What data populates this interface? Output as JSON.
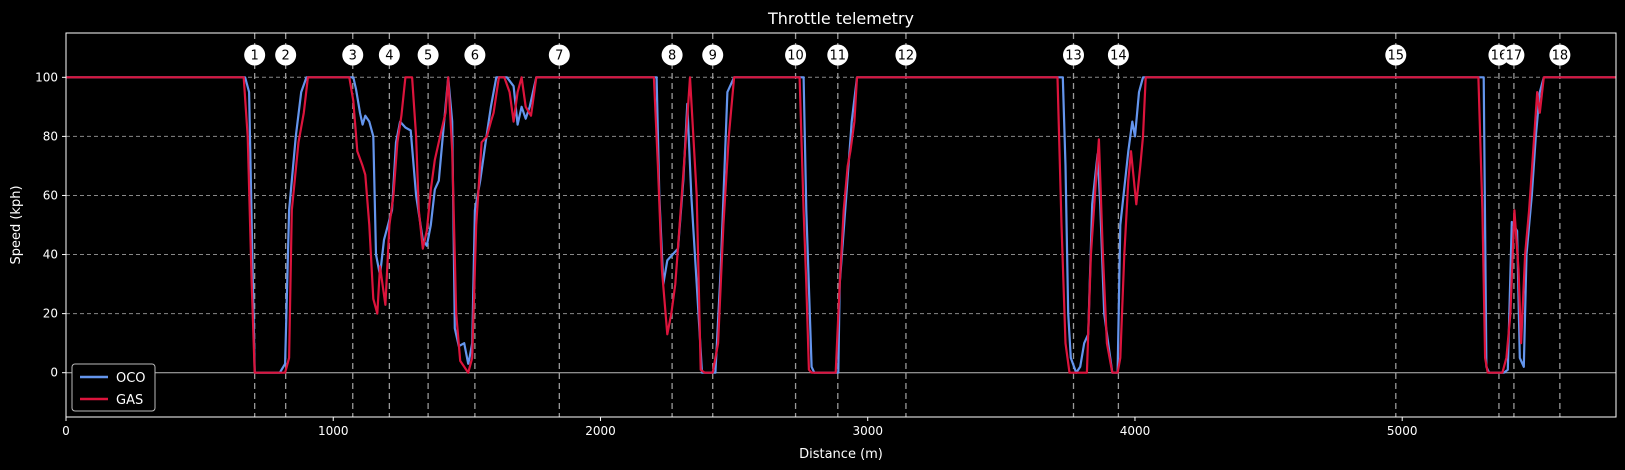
{
  "chart_data": {
    "type": "line",
    "title": "Throttle telemetry",
    "xlabel": "Distance (m)",
    "ylabel": "Speed (kph)",
    "xlim": [
      0,
      5800
    ],
    "ylim": [
      -15,
      115
    ],
    "x_ticks": [
      0,
      1000,
      2000,
      3000,
      4000,
      5000
    ],
    "y_ticks": [
      0,
      20,
      40,
      60,
      80,
      100
    ],
    "grid": true,
    "legend_position": "lower-left",
    "background": "#000000",
    "corners": [
      {
        "label": "1",
        "x": 706
      },
      {
        "label": "2",
        "x": 822
      },
      {
        "label": "3",
        "x": 1073
      },
      {
        "label": "4",
        "x": 1210
      },
      {
        "label": "5",
        "x": 1355
      },
      {
        "label": "6",
        "x": 1530
      },
      {
        "label": "7",
        "x": 1846
      },
      {
        "label": "8",
        "x": 2268
      },
      {
        "label": "9",
        "x": 2420
      },
      {
        "label": "10",
        "x": 2730
      },
      {
        "label": "11",
        "x": 2888
      },
      {
        "label": "12",
        "x": 3143
      },
      {
        "label": "13",
        "x": 3770
      },
      {
        "label": "14",
        "x": 3938
      },
      {
        "label": "15",
        "x": 4976
      },
      {
        "label": "16",
        "x": 5362
      },
      {
        "label": "17",
        "x": 5418
      },
      {
        "label": "18",
        "x": 5590
      }
    ],
    "series": [
      {
        "name": "OCO",
        "color": "#6495ed",
        "points": [
          [
            0,
            100
          ],
          [
            670,
            100
          ],
          [
            685,
            95
          ],
          [
            695,
            50
          ],
          [
            706,
            0
          ],
          [
            800,
            0
          ],
          [
            820,
            3
          ],
          [
            835,
            55
          ],
          [
            860,
            80
          ],
          [
            880,
            95
          ],
          [
            900,
            100
          ],
          [
            1075,
            100
          ],
          [
            1085,
            96
          ],
          [
            1100,
            88
          ],
          [
            1110,
            84
          ],
          [
            1120,
            87
          ],
          [
            1135,
            85
          ],
          [
            1150,
            80
          ],
          [
            1160,
            40
          ],
          [
            1175,
            33
          ],
          [
            1190,
            45
          ],
          [
            1205,
            50
          ],
          [
            1220,
            55
          ],
          [
            1235,
            78
          ],
          [
            1250,
            85
          ],
          [
            1270,
            83
          ],
          [
            1290,
            82
          ],
          [
            1310,
            60
          ],
          [
            1335,
            45
          ],
          [
            1350,
            43
          ],
          [
            1365,
            50
          ],
          [
            1380,
            62
          ],
          [
            1395,
            65
          ],
          [
            1410,
            80
          ],
          [
            1430,
            100
          ],
          [
            1445,
            85
          ],
          [
            1455,
            15
          ],
          [
            1470,
            9
          ],
          [
            1490,
            10
          ],
          [
            1505,
            3
          ],
          [
            1510,
            5
          ],
          [
            1520,
            10
          ],
          [
            1530,
            55
          ],
          [
            1550,
            65
          ],
          [
            1570,
            78
          ],
          [
            1590,
            90
          ],
          [
            1610,
            100
          ],
          [
            1650,
            100
          ],
          [
            1675,
            97
          ],
          [
            1690,
            84
          ],
          [
            1705,
            90
          ],
          [
            1720,
            86
          ],
          [
            1735,
            90
          ],
          [
            1760,
            100
          ],
          [
            2210,
            100
          ],
          [
            2220,
            60
          ],
          [
            2235,
            30
          ],
          [
            2250,
            38
          ],
          [
            2270,
            40
          ],
          [
            2290,
            42
          ],
          [
            2310,
            65
          ],
          [
            2325,
            91
          ],
          [
            2340,
            60
          ],
          [
            2360,
            30
          ],
          [
            2380,
            0
          ],
          [
            2430,
            0
          ],
          [
            2450,
            35
          ],
          [
            2475,
            95
          ],
          [
            2500,
            100
          ],
          [
            2760,
            100
          ],
          [
            2770,
            55
          ],
          [
            2790,
            2
          ],
          [
            2800,
            0
          ],
          [
            2890,
            0
          ],
          [
            2895,
            30
          ],
          [
            2920,
            60
          ],
          [
            2940,
            85
          ],
          [
            2960,
            100
          ],
          [
            3730,
            100
          ],
          [
            3740,
            70
          ],
          [
            3750,
            20
          ],
          [
            3760,
            5
          ],
          [
            3780,
            0
          ],
          [
            3795,
            2
          ],
          [
            3810,
            10
          ],
          [
            3825,
            13
          ],
          [
            3840,
            57
          ],
          [
            3860,
            74
          ],
          [
            3870,
            57
          ],
          [
            3885,
            20
          ],
          [
            3900,
            10
          ],
          [
            3915,
            0
          ],
          [
            3935,
            0
          ],
          [
            3945,
            50
          ],
          [
            3975,
            75
          ],
          [
            3990,
            85
          ],
          [
            4000,
            80
          ],
          [
            4015,
            95
          ],
          [
            4030,
            100
          ],
          [
            5305,
            100
          ],
          [
            5315,
            2
          ],
          [
            5325,
            0
          ],
          [
            5380,
            0
          ],
          [
            5395,
            1
          ],
          [
            5410,
            51
          ],
          [
            5430,
            48
          ],
          [
            5440,
            5
          ],
          [
            5455,
            2
          ],
          [
            5465,
            40
          ],
          [
            5485,
            60
          ],
          [
            5500,
            80
          ],
          [
            5515,
            95
          ],
          [
            5530,
            100
          ],
          [
            5800,
            100
          ]
        ]
      },
      {
        "name": "GAS",
        "color": "#dc143c",
        "points": [
          [
            0,
            100
          ],
          [
            665,
            100
          ],
          [
            680,
            80
          ],
          [
            695,
            30
          ],
          [
            706,
            0
          ],
          [
            820,
            0
          ],
          [
            835,
            5
          ],
          [
            845,
            55
          ],
          [
            870,
            78
          ],
          [
            890,
            88
          ],
          [
            905,
            100
          ],
          [
            1060,
            100
          ],
          [
            1075,
            92
          ],
          [
            1090,
            75
          ],
          [
            1110,
            70
          ],
          [
            1120,
            67
          ],
          [
            1135,
            50
          ],
          [
            1150,
            25
          ],
          [
            1165,
            20
          ],
          [
            1175,
            36
          ],
          [
            1195,
            23
          ],
          [
            1210,
            50
          ],
          [
            1225,
            60
          ],
          [
            1240,
            78
          ],
          [
            1255,
            87
          ],
          [
            1270,
            100
          ],
          [
            1295,
            100
          ],
          [
            1310,
            80
          ],
          [
            1320,
            55
          ],
          [
            1335,
            42
          ],
          [
            1350,
            48
          ],
          [
            1365,
            62
          ],
          [
            1380,
            72
          ],
          [
            1400,
            80
          ],
          [
            1420,
            88
          ],
          [
            1430,
            100
          ],
          [
            1445,
            75
          ],
          [
            1460,
            20
          ],
          [
            1475,
            4
          ],
          [
            1490,
            2
          ],
          [
            1505,
            0
          ],
          [
            1520,
            5
          ],
          [
            1535,
            50
          ],
          [
            1555,
            78
          ],
          [
            1575,
            80
          ],
          [
            1590,
            85
          ],
          [
            1600,
            88
          ],
          [
            1620,
            100
          ],
          [
            1640,
            100
          ],
          [
            1660,
            95
          ],
          [
            1675,
            85
          ],
          [
            1690,
            95
          ],
          [
            1705,
            100
          ],
          [
            1720,
            90
          ],
          [
            1740,
            87
          ],
          [
            1760,
            100
          ],
          [
            2200,
            100
          ],
          [
            2215,
            70
          ],
          [
            2230,
            35
          ],
          [
            2250,
            13
          ],
          [
            2265,
            20
          ],
          [
            2280,
            30
          ],
          [
            2300,
            55
          ],
          [
            2320,
            80
          ],
          [
            2335,
            100
          ],
          [
            2360,
            60
          ],
          [
            2375,
            1
          ],
          [
            2390,
            0
          ],
          [
            2420,
            0
          ],
          [
            2440,
            10
          ],
          [
            2460,
            50
          ],
          [
            2480,
            80
          ],
          [
            2500,
            100
          ],
          [
            2745,
            100
          ],
          [
            2760,
            55
          ],
          [
            2770,
            30
          ],
          [
            2780,
            1
          ],
          [
            2790,
            0
          ],
          [
            2880,
            0
          ],
          [
            2895,
            30
          ],
          [
            2910,
            55
          ],
          [
            2925,
            70
          ],
          [
            2935,
            75
          ],
          [
            2950,
            85
          ],
          [
            2960,
            100
          ],
          [
            3710,
            100
          ],
          [
            3725,
            50
          ],
          [
            3740,
            10
          ],
          [
            3755,
            0
          ],
          [
            3820,
            0
          ],
          [
            3835,
            40
          ],
          [
            3850,
            60
          ],
          [
            3865,
            79
          ],
          [
            3880,
            40
          ],
          [
            3895,
            10
          ],
          [
            3915,
            0
          ],
          [
            3935,
            0
          ],
          [
            3945,
            5
          ],
          [
            3960,
            40
          ],
          [
            3975,
            65
          ],
          [
            3985,
            75
          ],
          [
            4005,
            57
          ],
          [
            4020,
            70
          ],
          [
            4030,
            80
          ],
          [
            4040,
            100
          ],
          [
            5285,
            100
          ],
          [
            5300,
            55
          ],
          [
            5310,
            5
          ],
          [
            5320,
            0
          ],
          [
            5375,
            0
          ],
          [
            5390,
            5
          ],
          [
            5405,
            20
          ],
          [
            5420,
            55
          ],
          [
            5435,
            35
          ],
          [
            5445,
            10
          ],
          [
            5460,
            40
          ],
          [
            5475,
            55
          ],
          [
            5490,
            75
          ],
          [
            5505,
            95
          ],
          [
            5515,
            88
          ],
          [
            5530,
            100
          ],
          [
            5800,
            100
          ]
        ]
      }
    ]
  }
}
